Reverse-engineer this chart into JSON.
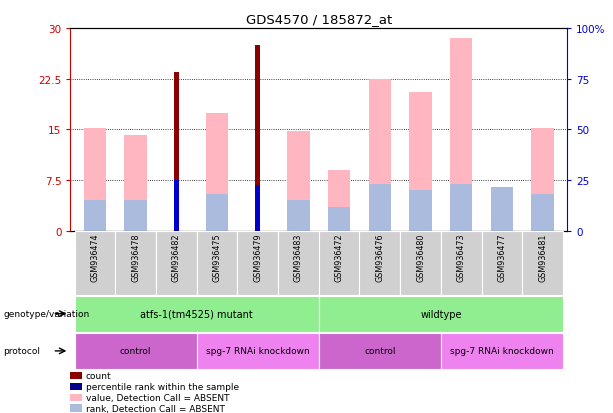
{
  "title": "GDS4570 / 185872_at",
  "samples": [
    "GSM936474",
    "GSM936478",
    "GSM936482",
    "GSM936475",
    "GSM936479",
    "GSM936483",
    "GSM936472",
    "GSM936476",
    "GSM936480",
    "GSM936473",
    "GSM936477",
    "GSM936481"
  ],
  "count_values": [
    0,
    0,
    23.5,
    0,
    27.5,
    0,
    0,
    0,
    0,
    0,
    0,
    0
  ],
  "percentile_rank_values": [
    0,
    0,
    7.5,
    0,
    6.8,
    0,
    0,
    0,
    0,
    0,
    0,
    0
  ],
  "pink_values": [
    15.2,
    14.2,
    0,
    17.5,
    0,
    14.7,
    9.0,
    22.5,
    20.5,
    28.5,
    0,
    15.2
  ],
  "lavender_values": [
    4.5,
    4.5,
    0,
    5.5,
    0,
    4.5,
    3.5,
    7.0,
    6.0,
    7.0,
    6.5,
    5.5
  ],
  "ylim": [
    0,
    30
  ],
  "y2lim": [
    0,
    100
  ],
  "yticks": [
    0,
    7.5,
    15,
    22.5,
    30
  ],
  "ytick_labels": [
    "0",
    "7.5",
    "15",
    "22.5",
    "30"
  ],
  "y2ticks": [
    0,
    25,
    50,
    75,
    100
  ],
  "y2tick_labels": [
    "0",
    "25",
    "50",
    "75",
    "100%"
  ],
  "geno_groups": [
    {
      "label": "atfs-1(tm4525) mutant",
      "start": 0,
      "end": 5,
      "color": "#90EE90"
    },
    {
      "label": "wildtype",
      "start": 6,
      "end": 11,
      "color": "#90EE90"
    }
  ],
  "prot_groups": [
    {
      "label": "control",
      "start": 0,
      "end": 2,
      "color": "#CC66CC"
    },
    {
      "label": "spg-7 RNAi knockdown",
      "start": 3,
      "end": 5,
      "color": "#EE82EE"
    },
    {
      "label": "control",
      "start": 6,
      "end": 8,
      "color": "#CC66CC"
    },
    {
      "label": "spg-7 RNAi knockdown",
      "start": 9,
      "end": 11,
      "color": "#EE82EE"
    }
  ],
  "legend_items": [
    {
      "label": "count",
      "color": "#8B0000"
    },
    {
      "label": "percentile rank within the sample",
      "color": "#00008B"
    },
    {
      "label": "value, Detection Call = ABSENT",
      "color": "#FFB6C1"
    },
    {
      "label": "rank, Detection Call = ABSENT",
      "color": "#AABBDD"
    }
  ],
  "count_color": "#8B0000",
  "percentile_color": "#0000CD",
  "pink_color": "#FFB6C1",
  "lavender_color": "#AABBDD",
  "bg_color": "#FFFFFF",
  "left_tick_color": "#CC0000",
  "right_tick_color": "#0000CC",
  "pink_bar_width": 0.55,
  "count_bar_width": 0.12
}
